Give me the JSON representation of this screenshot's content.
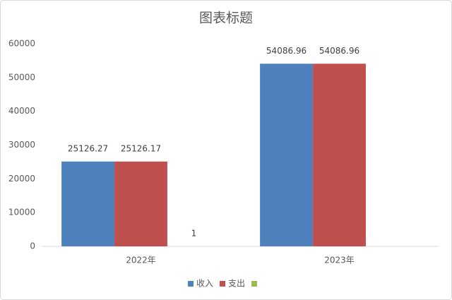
{
  "chart_data": {
    "type": "bar",
    "title": "图表标题",
    "categories": [
      "2022年",
      "2023年"
    ],
    "series": [
      {
        "name": "收入",
        "color": "#4f81bd",
        "values": [
          25126.27,
          54086.96
        ]
      },
      {
        "name": "支出",
        "color": "#c0504d",
        "values": [
          25126.17,
          54086.96
        ]
      },
      {
        "name": null,
        "color": "#9bbb59",
        "values": [
          1,
          null
        ]
      }
    ],
    "ylim": [
      0,
      60000
    ],
    "yticks": [
      0,
      10000,
      20000,
      30000,
      40000,
      50000,
      60000
    ],
    "grid": false,
    "legend": "bottom"
  }
}
